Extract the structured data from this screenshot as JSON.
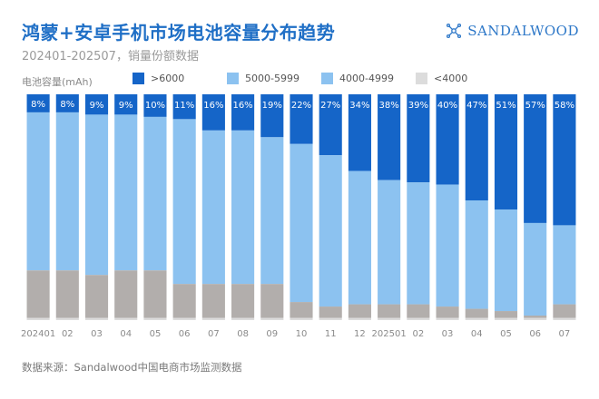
{
  "header": {
    "title": "鸿蒙+安卓手机市场电池容量分布趋势",
    "subtitle": "202401-202507，销量份额数据",
    "logo_text": "SANDALWOOD"
  },
  "footer": {
    "source": "数据来源：Sandalwood中国电商市场监测数据"
  },
  "chart_data": {
    "type": "bar",
    "stacked": true,
    "ylabel": "电池容量(mAh)",
    "ylim": [
      0,
      100
    ],
    "categories": [
      "202401",
      "02",
      "03",
      "04",
      "05",
      "06",
      "07",
      "08",
      "09",
      "10",
      "11",
      "12",
      "202501",
      "02",
      "03",
      "04",
      "05",
      "06",
      "07"
    ],
    "series": [
      {
        "name": ">6000",
        "color": "#1565c8",
        "show_labels": true,
        "values": [
          8,
          8,
          9,
          9,
          10,
          11,
          16,
          16,
          19,
          22,
          27,
          34,
          38,
          39,
          40,
          47,
          51,
          57,
          58
        ],
        "labels": [
          "8%",
          "8%",
          "9%",
          "9%",
          "10%",
          "11%",
          "16%",
          "16%",
          "19%",
          "22%",
          "27%",
          "34%",
          "38%",
          "39%",
          "40%",
          "47%",
          "51%",
          "57%",
          "58%"
        ]
      },
      {
        "name": "5000-5999",
        "color": "#8cc2f0",
        "values": [
          70,
          70,
          71,
          69,
          68,
          73,
          68,
          68,
          65,
          70,
          67,
          59,
          55,
          54,
          54,
          48,
          45,
          41,
          35
        ]
      },
      {
        "name": "4000-4999",
        "color": "#b2aeac",
        "values": [
          21,
          21,
          19,
          21,
          21,
          15,
          15,
          15,
          15,
          7,
          5,
          6,
          6,
          6,
          5,
          4,
          3,
          1,
          6
        ]
      },
      {
        "name": "<4000",
        "color": "#dcdcdc",
        "values": [
          1,
          1,
          1,
          1,
          1,
          1,
          1,
          1,
          1,
          1,
          1,
          1,
          1,
          1,
          1,
          1,
          1,
          1,
          1
        ]
      }
    ]
  }
}
